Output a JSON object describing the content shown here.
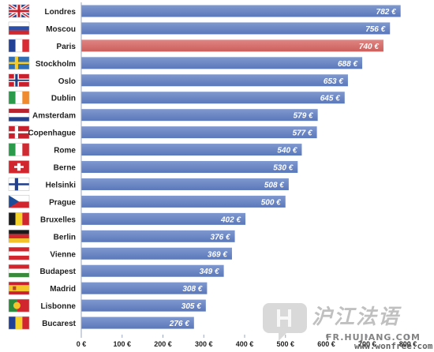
{
  "chart_data": {
    "type": "bar",
    "orientation": "horizontal",
    "categories": [
      "Londres",
      "Moscou",
      "Paris",
      "Stockholm",
      "Oslo",
      "Dublin",
      "Amsterdam",
      "Copenhague",
      "Rome",
      "Berne",
      "Helsinki",
      "Prague",
      "Bruxelles",
      "Berlin",
      "Vienne",
      "Budapest",
      "Madrid",
      "Lisbonne",
      "Bucarest"
    ],
    "values": [
      782,
      756,
      740,
      688,
      653,
      645,
      579,
      577,
      540,
      530,
      508,
      500,
      402,
      376,
      369,
      349,
      308,
      305,
      276
    ],
    "value_labels": [
      "782 €",
      "756 €",
      "740 €",
      "688 €",
      "653 €",
      "645 €",
      "579 €",
      "577 €",
      "540 €",
      "530 €",
      "508 €",
      "500 €",
      "402 €",
      "376 €",
      "369 €",
      "349 €",
      "308 €",
      "305 €",
      "276 €"
    ],
    "flags": [
      "uk-flag-icon",
      "russia-flag-icon",
      "france-flag-icon",
      "sweden-flag-icon",
      "norway-flag-icon",
      "ireland-flag-icon",
      "netherlands-flag-icon",
      "denmark-flag-icon",
      "italy-flag-icon",
      "switzerland-flag-icon",
      "finland-flag-icon",
      "czech-flag-icon",
      "belgium-flag-icon",
      "germany-flag-icon",
      "austria-flag-icon",
      "hungary-flag-icon",
      "spain-flag-icon",
      "portugal-flag-icon",
      "romania-flag-icon"
    ],
    "highlight": "Paris",
    "xlim": [
      0,
      800
    ],
    "xticks": [
      "0 €",
      "100 €",
      "200 €",
      "300 €",
      "400 €",
      "500 €",
      "600 €",
      "700 €",
      "800 €"
    ],
    "grid": false,
    "colors": {
      "bar": "#6a86c4",
      "highlight": "#d8706e"
    }
  },
  "watermark": {
    "text": "沪江法语",
    "url": "FR.HUJIANG.COM",
    "url2": "www.wonfree.com"
  }
}
